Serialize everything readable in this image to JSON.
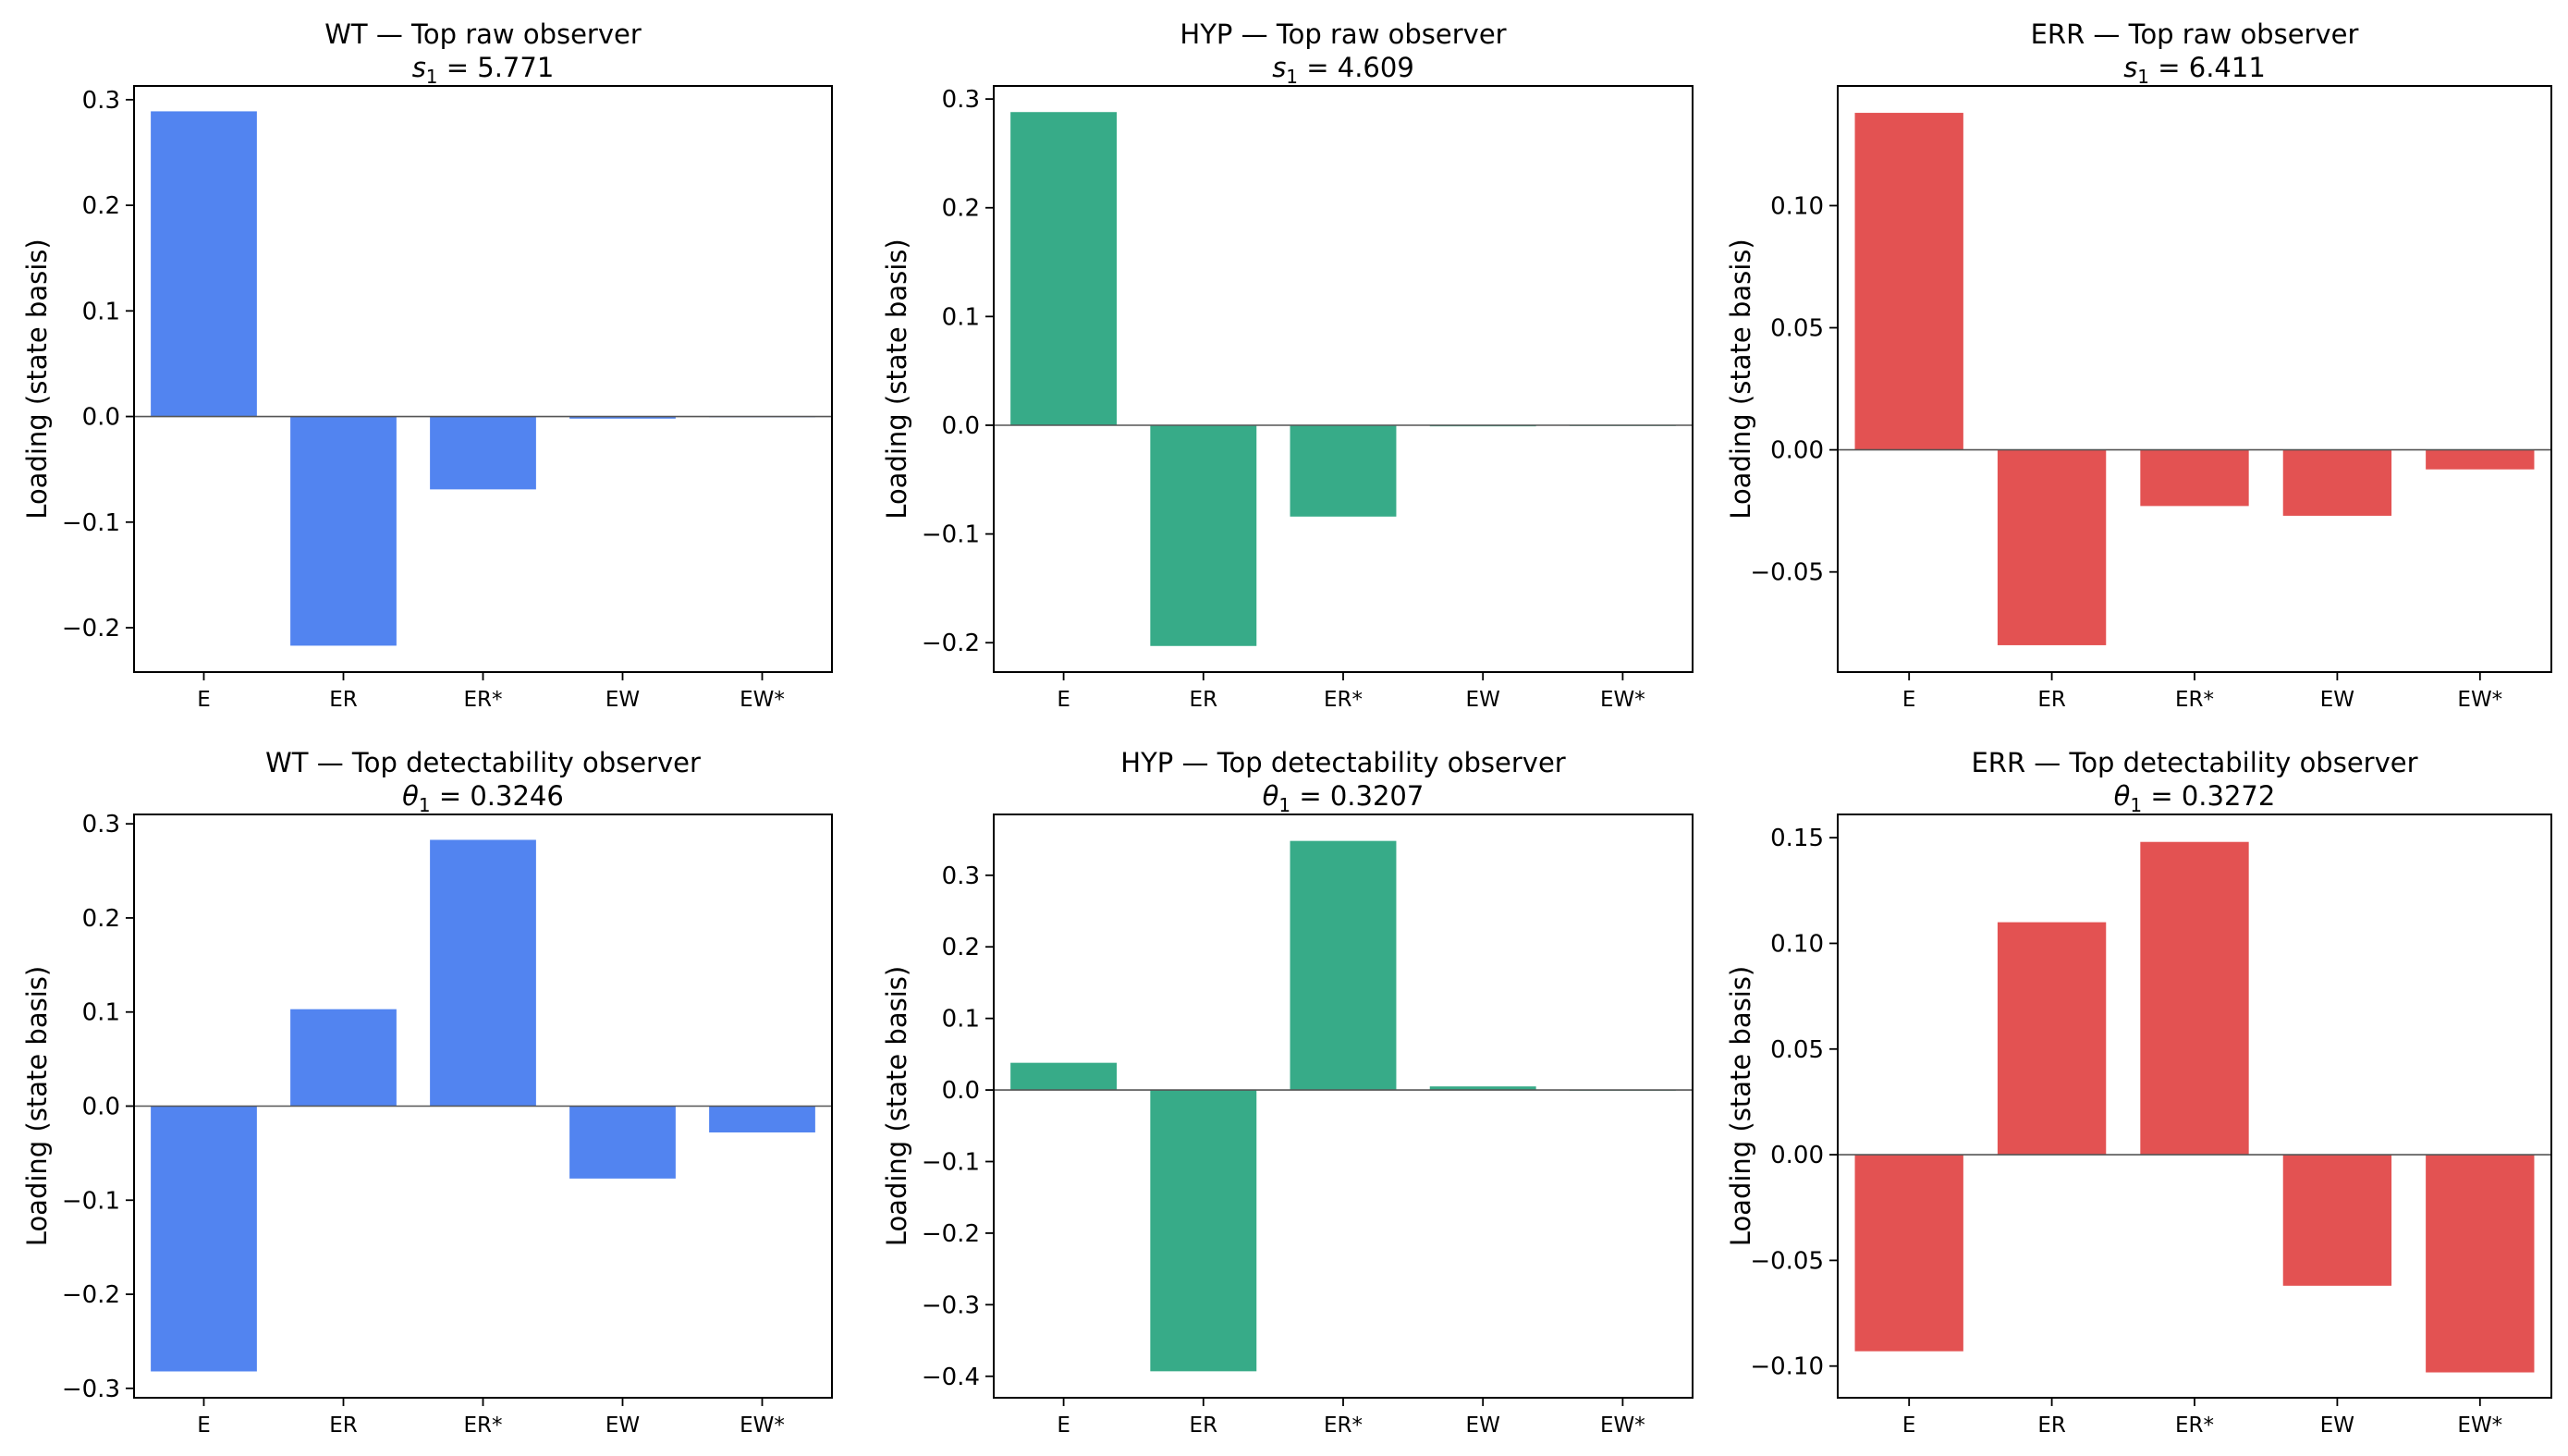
{
  "figure_colors": {
    "WT": "#5284f0",
    "HYP": "#37ab88",
    "ERR": "#e35252"
  },
  "chart_data": [
    {
      "type": "bar",
      "title_line1": "WT — Top raw observer",
      "title_line2_sym": "s",
      "title_line2_sub": "1",
      "title_line2_val": " = 5.771",
      "ylabel": "Loading (state basis)",
      "categories": [
        "E",
        "ER",
        "ER*",
        "EW",
        "EW*"
      ],
      "values": [
        0.289,
        -0.217,
        -0.069,
        -0.002,
        0.0
      ],
      "ylim": [
        -0.242,
        0.313
      ],
      "yticks": [
        0.3,
        0.2,
        0.1,
        0.0,
        -0.1,
        -0.2
      ],
      "ytick_labels": [
        "0.3",
        "0.2",
        "0.1",
        "0.0",
        "−0.1",
        "−0.2"
      ],
      "color": "#5284f0"
    },
    {
      "type": "bar",
      "title_line1": "HYP — Top raw observer",
      "title_line2_sym": "s",
      "title_line2_sub": "1",
      "title_line2_val": " = 4.609",
      "ylabel": "Loading (state basis)",
      "categories": [
        "E",
        "ER",
        "ER*",
        "EW",
        "EW*"
      ],
      "values": [
        0.288,
        -0.203,
        -0.084,
        -0.001,
        0.0
      ],
      "ylim": [
        -0.227,
        0.312
      ],
      "yticks": [
        0.3,
        0.2,
        0.1,
        0.0,
        -0.1,
        -0.2
      ],
      "ytick_labels": [
        "0.3",
        "0.2",
        "0.1",
        "0.0",
        "−0.1",
        "−0.2"
      ],
      "color": "#37ab88"
    },
    {
      "type": "bar",
      "title_line1": "ERR — Top raw observer",
      "title_line2_sym": "s",
      "title_line2_sub": "1",
      "title_line2_val": " = 6.411",
      "ylabel": "Loading (state basis)",
      "categories": [
        "E",
        "ER",
        "ER*",
        "EW",
        "EW*"
      ],
      "values": [
        0.138,
        -0.08,
        -0.023,
        -0.027,
        -0.008
      ],
      "ylim": [
        -0.091,
        0.149
      ],
      "yticks": [
        0.1,
        0.05,
        0.0,
        -0.05
      ],
      "ytick_labels": [
        "0.10",
        "0.05",
        "0.00",
        "−0.05"
      ],
      "color": "#e35252"
    },
    {
      "type": "bar",
      "title_line1": "WT — Top detectability observer",
      "title_line2_sym": "θ",
      "title_line2_sub": "1",
      "title_line2_val": " = 0.3246",
      "ylabel": "Loading (state basis)",
      "categories": [
        "E",
        "ER",
        "ER*",
        "EW",
        "EW*"
      ],
      "values": [
        -0.282,
        0.103,
        0.283,
        -0.077,
        -0.028
      ],
      "ylim": [
        -0.31,
        0.31
      ],
      "yticks": [
        0.3,
        0.2,
        0.1,
        0.0,
        -0.1,
        -0.2,
        -0.3
      ],
      "ytick_labels": [
        "0.3",
        "0.2",
        "0.1",
        "0.0",
        "−0.1",
        "−0.2",
        "−0.3"
      ],
      "color": "#5284f0"
    },
    {
      "type": "bar",
      "title_line1": "HYP — Top detectability observer",
      "title_line2_sym": "θ",
      "title_line2_sub": "1",
      "title_line2_val": " = 0.3207",
      "ylabel": "Loading (state basis)",
      "categories": [
        "E",
        "ER",
        "ER*",
        "EW",
        "EW*"
      ],
      "values": [
        0.038,
        -0.393,
        0.348,
        0.005,
        0.0
      ],
      "ylim": [
        -0.43,
        0.385
      ],
      "yticks": [
        0.3,
        0.2,
        0.1,
        0.0,
        -0.1,
        -0.2,
        -0.3,
        -0.4
      ],
      "ytick_labels": [
        "0.3",
        "0.2",
        "0.1",
        "0.0",
        "−0.1",
        "−0.2",
        "−0.3",
        "−0.4"
      ],
      "color": "#37ab88"
    },
    {
      "type": "bar",
      "title_line1": "ERR — Top detectability observer",
      "title_line2_sym": "θ",
      "title_line2_sub": "1",
      "title_line2_val": " = 0.3272",
      "ylabel": "Loading (state basis)",
      "categories": [
        "E",
        "ER",
        "ER*",
        "EW",
        "EW*"
      ],
      "values": [
        -0.093,
        0.11,
        0.148,
        -0.062,
        -0.103
      ],
      "ylim": [
        -0.115,
        0.161
      ],
      "yticks": [
        0.15,
        0.1,
        0.05,
        0.0,
        -0.05,
        -0.1
      ],
      "ytick_labels": [
        "0.15",
        "0.10",
        "0.05",
        "0.00",
        "−0.05",
        "−0.10"
      ],
      "color": "#e35252"
    }
  ]
}
